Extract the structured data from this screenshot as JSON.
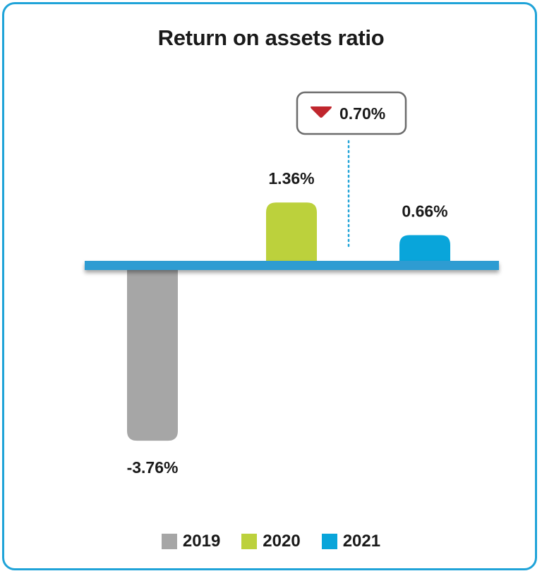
{
  "chart_data": {
    "type": "bar",
    "title": "Return on assets ratio",
    "categories": [
      "2019",
      "2020",
      "2021"
    ],
    "values": [
      -3.76,
      1.36,
      0.66
    ],
    "value_labels": [
      "-3.76%",
      "1.36%",
      "0.66%"
    ],
    "colors": [
      "#a6a6a6",
      "#bcd13c",
      "#09a5da"
    ],
    "change_annotation": {
      "label": "0.70%",
      "direction": "down",
      "color": "#c0262d"
    },
    "legend": {
      "placement": "bottom",
      "entries": [
        "2019",
        "2020",
        "2021"
      ]
    },
    "grid": false,
    "axis_color": "#2e9cd2"
  }
}
